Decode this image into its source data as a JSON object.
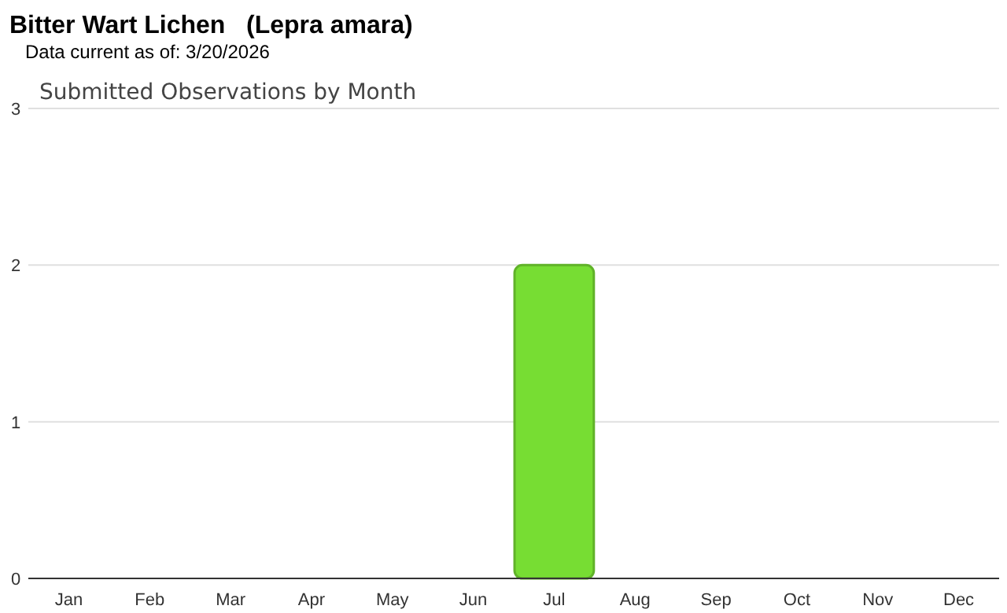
{
  "chart_data": {
    "type": "bar",
    "title": "Bitter Wart Lichen   (Lepra amara)",
    "subtitle": "Data current as of: 3/20/2026",
    "annotations": [
      "Submitted Observations by Month"
    ],
    "categories": [
      "Jan",
      "Feb",
      "Mar",
      "Apr",
      "May",
      "Jun",
      "Jul",
      "Aug",
      "Sep",
      "Oct",
      "Nov",
      "Dec"
    ],
    "values": [
      0,
      0,
      0,
      0,
      0,
      0,
      2,
      0,
      0,
      0,
      0,
      0
    ],
    "color": "#77dd33",
    "ylim": [
      0,
      3
    ],
    "yticks": [
      0,
      1,
      2,
      3
    ],
    "grid": "y"
  }
}
